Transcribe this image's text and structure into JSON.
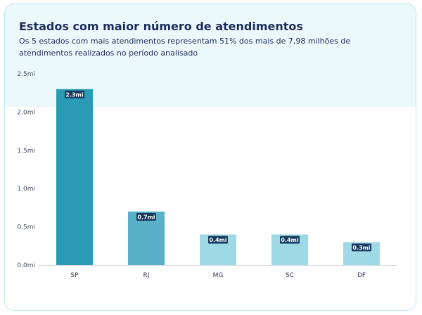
{
  "title": "Estados com maior número de atendimentos",
  "subtitle": "Os 5 estados com mais atendimentos representam 51% dos mais de 7,98 milhões de atendimentos realizados no período analisado",
  "chart_data": {
    "type": "bar",
    "categories": [
      "SP",
      "RJ",
      "MG",
      "SC",
      "DF"
    ],
    "values": [
      2.3,
      0.7,
      0.4,
      0.4,
      0.3
    ],
    "data_labels": [
      "2.3mi",
      "0.7mi",
      "0.4mi",
      "0.4mi",
      "0.3mi"
    ],
    "yticks": [
      "0.0mi",
      "0.5mi",
      "1.0mi",
      "1.5mi",
      "2.0mi",
      "2.5mi"
    ],
    "ylim": [
      0,
      2.5
    ],
    "grid": false,
    "legend": "none",
    "colors": [
      "#2a9bb5",
      "#58b0c9",
      "#9fd9e6",
      "#9fd9e6",
      "#9fd9e6"
    ],
    "label_bg": "#173a5e"
  }
}
